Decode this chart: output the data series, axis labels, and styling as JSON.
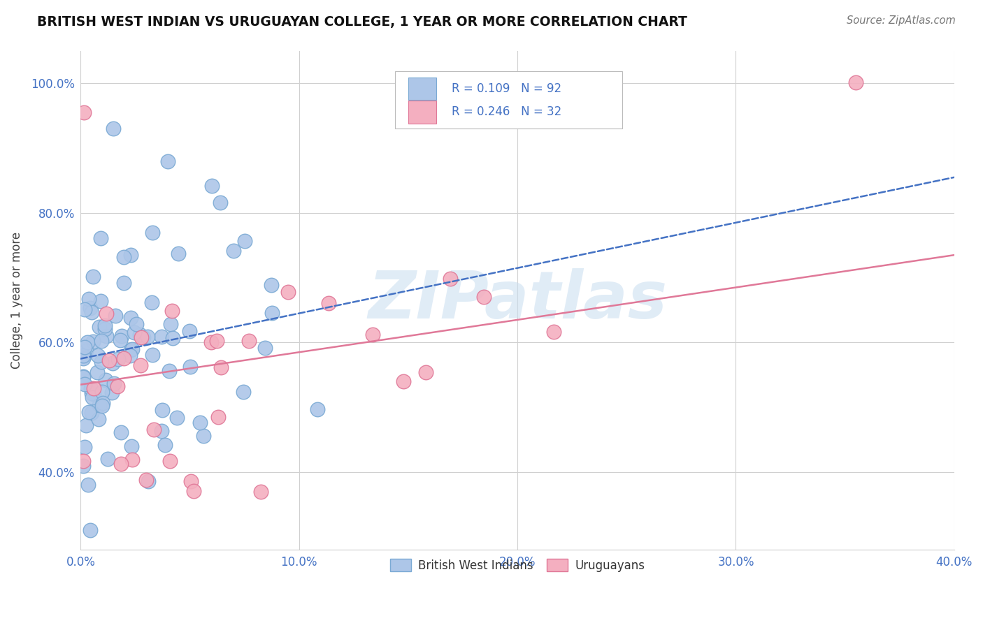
{
  "title": "BRITISH WEST INDIAN VS URUGUAYAN COLLEGE, 1 YEAR OR MORE CORRELATION CHART",
  "source": "Source: ZipAtlas.com",
  "ylabel": "College, 1 year or more",
  "xlim": [
    0.0,
    0.4
  ],
  "ylim": [
    0.28,
    1.05
  ],
  "x_ticks": [
    0.0,
    0.1,
    0.2,
    0.3,
    0.4
  ],
  "x_tick_labels": [
    "0.0%",
    "10.0%",
    "20.0%",
    "30.0%",
    "40.0%"
  ],
  "y_ticks": [
    0.4,
    0.6,
    0.8,
    1.0
  ],
  "y_tick_labels": [
    "40.0%",
    "60.0%",
    "80.0%",
    "100.0%"
  ],
  "blue_color": "#adc6e8",
  "blue_edge_color": "#7baad4",
  "pink_color": "#f4afc0",
  "pink_edge_color": "#e07898",
  "blue_line_color": "#4472c4",
  "pink_line_color": "#e07898",
  "legend_bottom_blue": "British West Indians",
  "legend_bottom_pink": "Uruguayans",
  "N_blue": 92,
  "N_pink": 32,
  "R_blue": 0.109,
  "R_pink": 0.246,
  "blue_intercept": 0.575,
  "blue_slope": 0.7,
  "pink_intercept": 0.535,
  "pink_slope": 0.5,
  "watermark_text": "ZIPatlas",
  "watermark_color": "#c8ddf0",
  "watermark_alpha": 0.55
}
